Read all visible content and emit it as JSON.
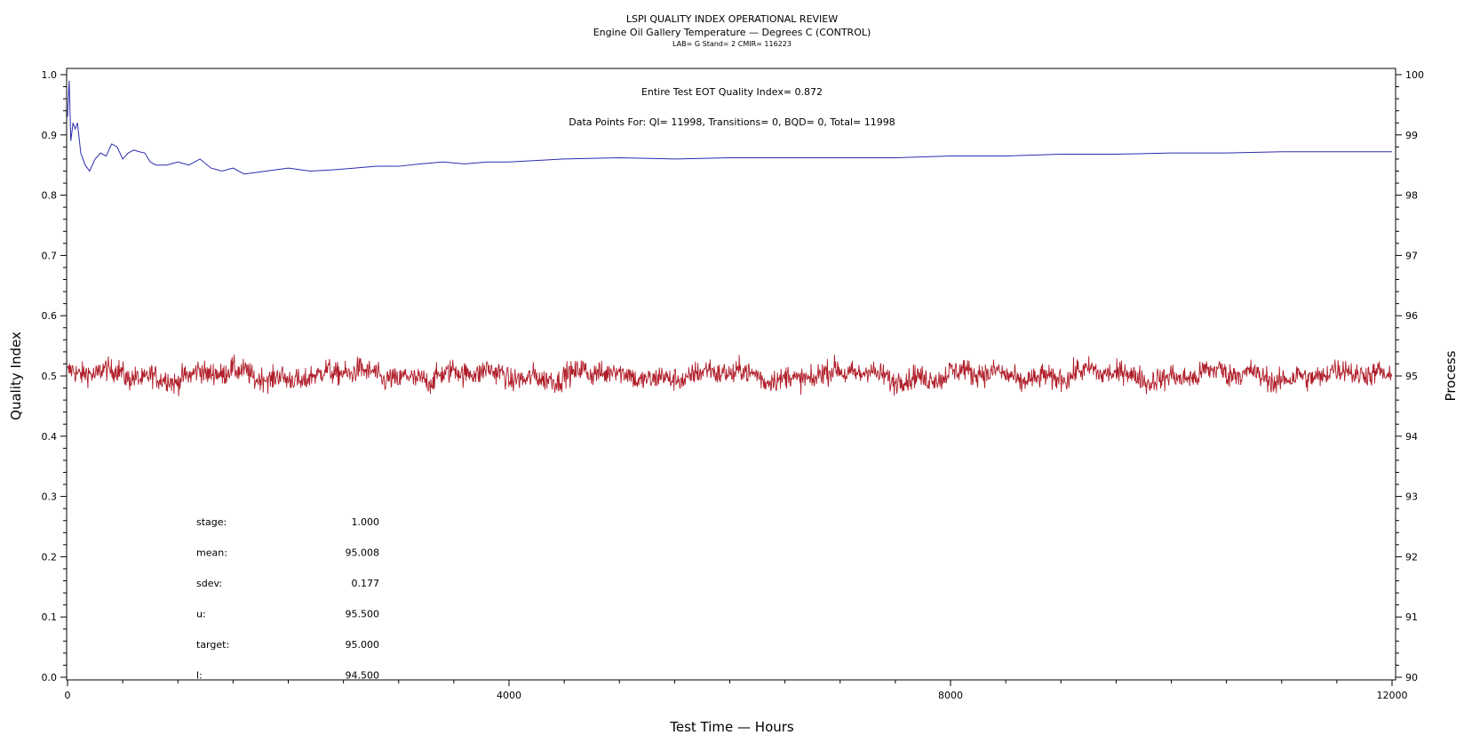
{
  "chart_data": {
    "type": "line",
    "title": "LSPI QUALITY INDEX OPERATIONAL REVIEW",
    "subtitle": "Engine Oil Gallery Temperature — Degrees C (CONTROL)",
    "subtitle2": "LAB= G Stand= 2 CMIR= 116223",
    "annotation_qi": "Entire Test EOT Quality Index=   0.872",
    "annotation_points": "Data Points For: QI= 11998, Transitions=      0, BQD=      0, Total= 11998",
    "xlabel": "Test Time — Hours",
    "ylabel_left": "Quality Index",
    "ylabel_right": "Process",
    "xlim": [
      0,
      12000
    ],
    "ylim_left": [
      0.0,
      1.0
    ],
    "ylim_right": [
      90,
      100
    ],
    "x_ticks": [
      "0",
      "4000",
      "8000",
      "12000"
    ],
    "y_left_ticks": [
      "0.0",
      "0.1",
      "0.2",
      "0.3",
      "0.4",
      "0.5",
      "0.6",
      "0.7",
      "0.8",
      "0.9",
      "1.0"
    ],
    "y_right_ticks": [
      "90",
      "91",
      "92",
      "93",
      "94",
      "95",
      "96",
      "97",
      "98",
      "99",
      "100"
    ],
    "grid": false,
    "series": [
      {
        "name": "Quality Index",
        "axis": "left",
        "color": "#2b2bb0",
        "x": [
          0,
          15,
          30,
          50,
          70,
          90,
          120,
          160,
          200,
          250,
          300,
          350,
          400,
          450,
          500,
          550,
          600,
          650,
          700,
          750,
          800,
          900,
          1000,
          1100,
          1200,
          1300,
          1400,
          1500,
          1600,
          1800,
          2000,
          2200,
          2400,
          2600,
          2800,
          3000,
          3200,
          3400,
          3600,
          3800,
          4000,
          4500,
          5000,
          5500,
          6000,
          6500,
          7000,
          7500,
          8000,
          8500,
          9000,
          9500,
          10000,
          10500,
          11000,
          11500,
          12000
        ],
        "y": [
          0.93,
          0.99,
          0.89,
          0.92,
          0.91,
          0.92,
          0.87,
          0.85,
          0.84,
          0.86,
          0.87,
          0.865,
          0.885,
          0.88,
          0.86,
          0.87,
          0.875,
          0.872,
          0.87,
          0.855,
          0.85,
          0.85,
          0.855,
          0.85,
          0.86,
          0.845,
          0.84,
          0.845,
          0.835,
          0.84,
          0.845,
          0.84,
          0.842,
          0.845,
          0.848,
          0.848,
          0.852,
          0.855,
          0.852,
          0.855,
          0.855,
          0.86,
          0.862,
          0.86,
          0.862,
          0.862,
          0.862,
          0.862,
          0.865,
          0.865,
          0.868,
          0.868,
          0.87,
          0.87,
          0.872,
          0.872,
          0.872
        ]
      },
      {
        "name": "Process",
        "axis": "right",
        "color": "#b01e2a",
        "generated": "noisy",
        "count": 11998,
        "mean": 95.008,
        "sdev": 0.177
      }
    ],
    "stats": [
      {
        "label": "stage:",
        "value": "1.000"
      },
      {
        "label": "mean:",
        "value": "95.008"
      },
      {
        "label": "sdev:",
        "value": "0.177"
      },
      {
        "label": "u:",
        "value": "95.500"
      },
      {
        "label": "target:",
        "value": "95.000"
      },
      {
        "label": "l:",
        "value": "94.500"
      }
    ]
  }
}
